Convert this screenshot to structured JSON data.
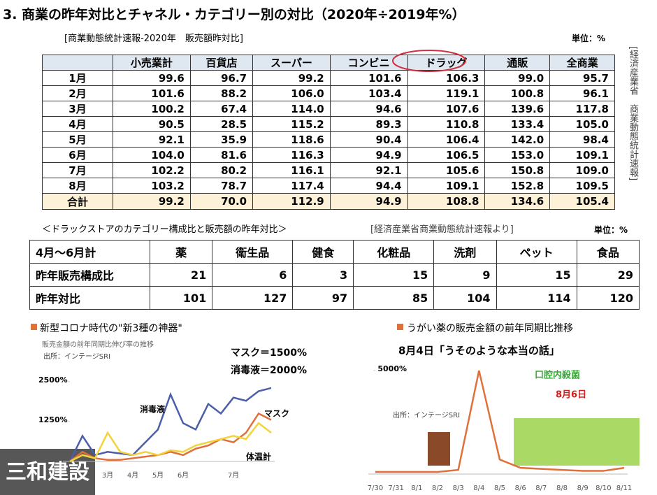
{
  "header": {
    "title": "3. 商業の昨年対比とチャネル・カテゴリー別の対比（2020年÷2019年%）"
  },
  "table1": {
    "caption": "[商業動態統計速報-2020年　販売額昨対比]",
    "unit": "単位：%",
    "side_note": "[経済産業省　商業動態統計速報]",
    "columns": [
      "小売業計",
      "百貨店",
      "スーパー",
      "コンビニ",
      "ドラッグ",
      "通販",
      "全商業"
    ],
    "rows": [
      [
        "1月",
        "99.6",
        "96.7",
        "99.2",
        "101.6",
        "106.3",
        "99.0",
        "95.7"
      ],
      [
        "2月",
        "101.6",
        "88.2",
        "106.0",
        "103.4",
        "119.1",
        "100.8",
        "96.1"
      ],
      [
        "3月",
        "100.2",
        "67.4",
        "114.0",
        "94.6",
        "107.6",
        "139.6",
        "117.8"
      ],
      [
        "4月",
        "90.5",
        "28.5",
        "115.2",
        "89.3",
        "110.8",
        "133.4",
        "105.0"
      ],
      [
        "5月",
        "92.1",
        "35.9",
        "118.6",
        "90.4",
        "106.4",
        "142.0",
        "98.4"
      ],
      [
        "6月",
        "104.0",
        "81.6",
        "116.3",
        "94.9",
        "106.5",
        "153.0",
        "109.1"
      ],
      [
        "7月",
        "102.2",
        "80.2",
        "116.1",
        "92.1",
        "105.6",
        "150.8",
        "109.0"
      ],
      [
        "8月",
        "103.2",
        "78.7",
        "117.4",
        "94.4",
        "109.1",
        "152.8",
        "109.5"
      ]
    ],
    "total": [
      "合計",
      "99.2",
      "70.0",
      "112.9",
      "94.9",
      "108.8",
      "134.6",
      "105.4"
    ]
  },
  "table2": {
    "caption": "＜ドラックストアのカテゴリー構成比と販売額の昨年対比＞",
    "source": "[経済産業省商業動態統計速報より]",
    "unit": "単位：%",
    "columns": [
      "4月～6月計",
      "薬",
      "衛生品",
      "健食",
      "化粧品",
      "洗剤",
      "ペット",
      "食品"
    ],
    "rows": [
      [
        "昨年販売構成比",
        21,
        6,
        3,
        15,
        9,
        15,
        29
      ],
      [
        "昨年対比",
        101,
        127,
        97,
        85,
        104,
        114,
        120
      ]
    ]
  },
  "chart_data": [
    {
      "type": "line",
      "title": "新型コロナ時代の\"新3種の神器\"",
      "subtitle": "販売金額の前年同期比伸び率の推移",
      "source": "出所：インテージSRI",
      "annotations": [
        "マスク＝1500%",
        "消毒液＝2000%"
      ],
      "categories": [
        null,
        null,
        null,
        "3月",
        null,
        "4月",
        null,
        "5月",
        null,
        "6月",
        null,
        null,
        null,
        "7月",
        null,
        null,
        null
      ],
      "series": [
        {
          "name": "消毒液",
          "color": "#4a5fa8",
          "values": [
            0,
            800,
            200,
            300,
            250,
            200,
            600,
            1000,
            2100,
            1200,
            1000,
            1800,
            1500,
            2000,
            1900,
            2200,
            2300
          ]
        },
        {
          "name": "マスク",
          "color": "#e0703a",
          "values": [
            0,
            300,
            100,
            50,
            50,
            100,
            150,
            200,
            300,
            200,
            400,
            500,
            700,
            600,
            900,
            1500,
            1300
          ]
        },
        {
          "name": "体温計",
          "color": "#f2d43a",
          "values": [
            0,
            200,
            100,
            900,
            300,
            200,
            300,
            200,
            350,
            300,
            500,
            600,
            700,
            800,
            700,
            1200,
            900
          ]
        }
      ],
      "ylim": [
        0,
        3000
      ],
      "yticks": [
        {
          "value": 1250,
          "label": "1250%"
        },
        {
          "value": 2500,
          "label": "2500%"
        }
      ]
    },
    {
      "type": "line",
      "title": "うがい薬の販売金額の前年同期比推移",
      "subtitle": "8月4日「うそのような本当の話」",
      "source": "出所：インテージSRI",
      "annotations": [
        "口腔内殺菌",
        "8月6日"
      ],
      "categories": [
        "7/30",
        "7/31",
        "8/1",
        "8/2",
        "8/3",
        "8/4",
        "8/5",
        "8/6",
        "8/7",
        "8/8",
        "8/9",
        "8/10",
        "8/11"
      ],
      "series": [
        {
          "color": "#e0703a",
          "values": [
            100,
            100,
            100,
            100,
            200,
            5000,
            700,
            300,
            250,
            200,
            150,
            150,
            300
          ]
        }
      ],
      "ylim": [
        0,
        5000
      ],
      "yticks": [
        {
          "value": 5000,
          "label": "5000%"
        }
      ]
    }
  ],
  "watermark": "三和建設"
}
